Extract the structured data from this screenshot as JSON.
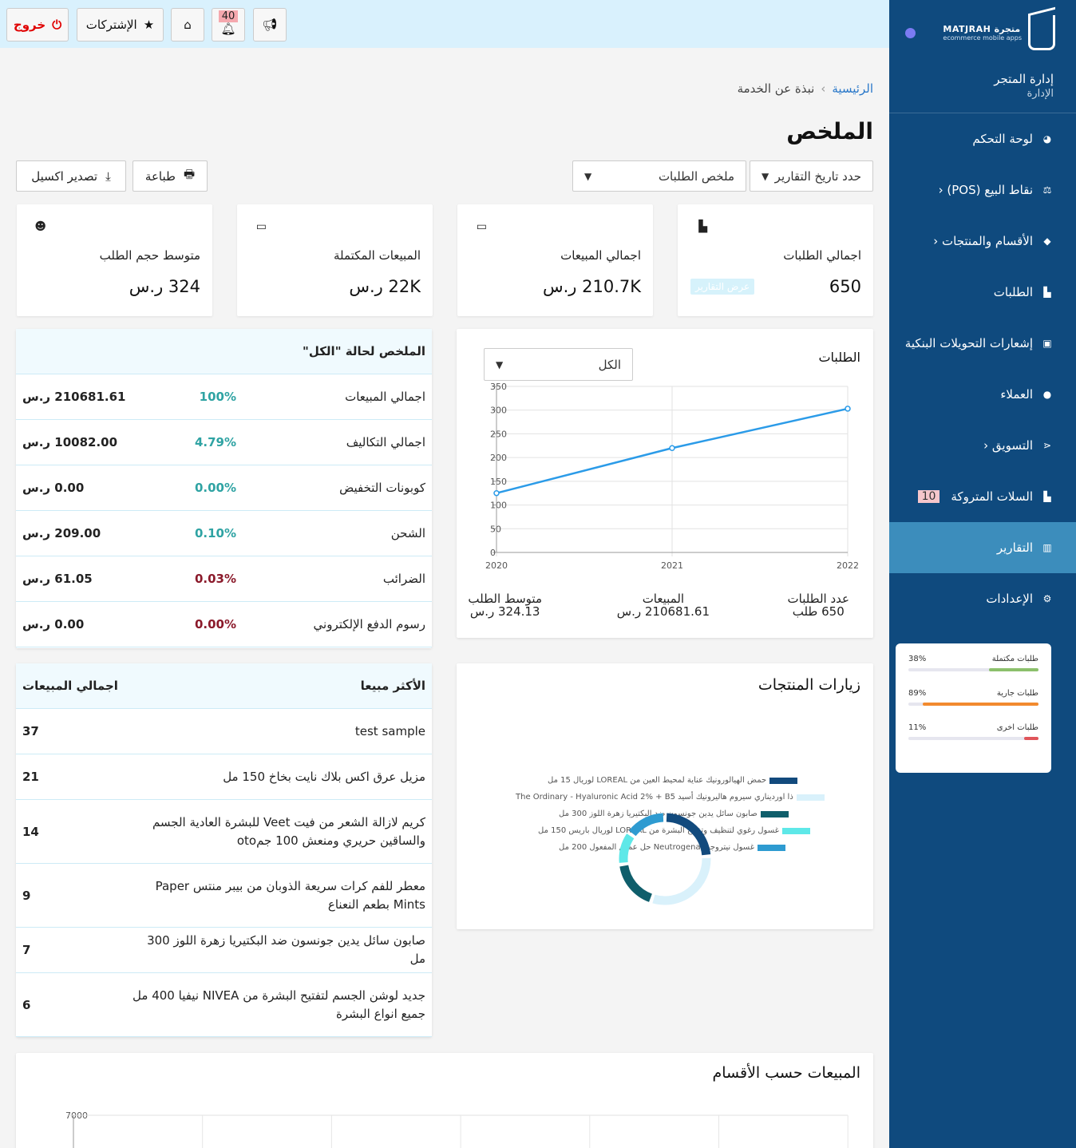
{
  "brand": {
    "name": "MATJRAH متجرة",
    "sub": "ecommerce mobile apps"
  },
  "store": {
    "title": "إدارة المتجر",
    "subtitle": "الإدارة"
  },
  "nav": [
    {
      "label": "لوحة التحكم",
      "icon": "dashboard-icon",
      "glyph": "◕"
    },
    {
      "label": "نقاط البيع (POS) ‹",
      "icon": "balance-scale-icon",
      "glyph": "⚖"
    },
    {
      "label": "الأقسام والمنتجات ‹",
      "icon": "tag-icon",
      "glyph": "◆"
    },
    {
      "label": "الطلبات",
      "icon": "cart-icon",
      "glyph": "▙"
    },
    {
      "label": "إشعارات التحويلات البنكية",
      "icon": "money-icon",
      "glyph": "▣"
    },
    {
      "label": "العملاء",
      "icon": "user-icon",
      "glyph": "●"
    },
    {
      "label": "التسويق ‹",
      "icon": "share-icon",
      "glyph": "⋖"
    },
    {
      "label": "السلات المتروكة",
      "icon": "cart-icon",
      "glyph": "▙",
      "badge": "10"
    },
    {
      "label": "التقارير",
      "icon": "bar-chart-icon",
      "glyph": "▥",
      "active": true
    },
    {
      "label": "الإعدادات",
      "icon": "cogs-icon",
      "glyph": "⚙"
    }
  ],
  "order_stats": [
    {
      "label": "طلبات مكتملة",
      "pct": "38%",
      "value": 0.38,
      "color": "#8cc06c"
    },
    {
      "label": "طلبات جارية",
      "pct": "89%",
      "value": 0.89,
      "color": "#f28a2e"
    },
    {
      "label": "طلبات اخرى",
      "pct": "11%",
      "value": 0.11,
      "color": "#e0555a"
    }
  ],
  "topbar": {
    "logout": "خروج",
    "subscriptions": "الإشتركات",
    "notifications_count": "40"
  },
  "breadcrumb": {
    "home": "الرئيسية",
    "current": "نبذة عن الخدمة"
  },
  "page_title": "الملخص",
  "filters": {
    "date": "حدد تاريخ التقارير",
    "report_type": "ملخص الطلبات"
  },
  "actions": {
    "print": "طباعة",
    "export": "تصدير اكسيل"
  },
  "cards": [
    {
      "label": "اجمالي الطلبات",
      "value": "650",
      "icon": "cart-icon",
      "glyph": "▙",
      "link": "عرض التقارير"
    },
    {
      "label": "اجمالي المبيعات",
      "value": "210.7K ر.س",
      "icon": "credit-card-icon",
      "glyph": "▭"
    },
    {
      "label": "المبيعات المكتملة",
      "value": "22K ر.س",
      "icon": "credit-card-icon",
      "glyph": "▭"
    },
    {
      "label": "متوسط حجم الطلب",
      "value": "324 ر.س",
      "icon": "users-icon",
      "glyph": "☻"
    }
  ],
  "summary": {
    "title": "الملخص لحالة \"الكل\"",
    "rows": [
      {
        "name": "اجمالي المبيعات",
        "pct": "100%",
        "amount": "210681.61 ر.س",
        "color": "#2fa3a3"
      },
      {
        "name": "اجمالي التكاليف",
        "pct": "4.79%",
        "amount": "10082.00 ر.س",
        "color": "#2fa3a3"
      },
      {
        "name": "كوبونات التخفيض",
        "pct": "0.00%",
        "amount": "0.00 ر.س",
        "color": "#2fa3a3"
      },
      {
        "name": "الشحن",
        "pct": "0.10%",
        "amount": "209.00 ر.س",
        "color": "#2fa3a3"
      },
      {
        "name": "الضرائب",
        "pct": "0.03%",
        "amount": "61.05 ر.س",
        "color": "#8b1a2b"
      },
      {
        "name": "رسوم الدفع الإلكتروني",
        "pct": "0.00%",
        "amount": "0.00 ر.س",
        "color": "#8b1a2b"
      }
    ]
  },
  "orders_chart": {
    "title": "الطلبات",
    "filter": "الكل",
    "kpis": [
      {
        "label": "عدد الطلبات",
        "value": "650 طلب"
      },
      {
        "label": "المبيعات",
        "value": "210681.61 ر.س"
      },
      {
        "label": "متوسط الطلب",
        "value": "324.13 ر.س"
      }
    ]
  },
  "chart_data": [
    {
      "type": "line",
      "x": [
        "2020",
        "2021",
        "2022"
      ],
      "series": [
        {
          "values": [
            125,
            220,
            303
          ]
        }
      ],
      "ylim": [
        0,
        350
      ],
      "yticks": [
        0,
        50,
        100,
        150,
        200,
        250,
        300,
        350
      ],
      "color": "#2b9be8",
      "grid": true
    },
    {
      "type": "pie",
      "title": "زيارات المنتجات",
      "legend": [
        {
          "name": "حمض الهيالورونيك عناية لمحيط العين من LOREAL لوريال 15 مل",
          "color": "#124a7d"
        },
        {
          "name": "ذا اورديناري سيروم هاليرونيك أسيد The Ordinary - Hyaluronic Acid 2% + B5",
          "color": "#d9f1fb"
        },
        {
          "name": "صابون سائل يدين جونسون ضد البكتيريا زهرة اللوز 300 مل",
          "color": "#0f5e6b"
        },
        {
          "name": "غسول رغوي لتنظيف وتفتيح البشرة من LOREAL لوريال باريس 150 مل",
          "color": "#5ee8e8"
        },
        {
          "name": "غسول نيتروجينا Neutrogena حل عميق المفعول 200 مل",
          "color": "#2e9bd1"
        }
      ],
      "values": [
        24,
        31,
        18,
        12,
        15
      ]
    },
    {
      "type": "bar",
      "title": "المبيعات حسب الأقسام",
      "yticks_visible": [
        "7000"
      ]
    }
  ],
  "best_sellers": {
    "col_product": "الأكثر مبيعا",
    "col_total": "اجمالي المبيعات",
    "rows": [
      {
        "product": "test sample",
        "count": "37"
      },
      {
        "product": "مزيل عرق اكس بلاك نايت بخاخ 150 مل",
        "count": "21"
      },
      {
        "product": "كريم لازالة الشعر من فيت Veet للبشرة العادية الجسم والساقين حريري ومنعش 100 جمoto",
        "count": "14"
      },
      {
        "product": "معطر للفم كرات سريعة الذوبان من بيبر منتس Paper Mints بطعم النعناع",
        "count": "9"
      },
      {
        "product": "صابون سائل يدين جونسون ضد البكتيريا زهرة اللوز 300 مل",
        "count": "7"
      },
      {
        "product": "جديد لوشن الجسم لتفتيح البشرة من NIVEA نيفيا 400 مل جميع انواع البشرة",
        "count": "6"
      }
    ]
  }
}
